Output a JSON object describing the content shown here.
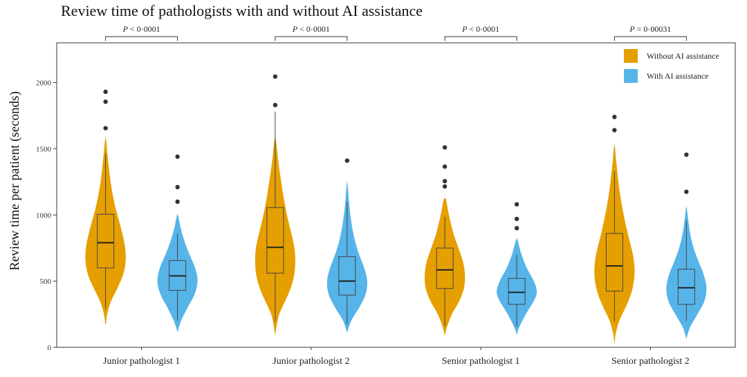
{
  "chart_data": {
    "type": "violin",
    "title": "Review time of pathologists with and without AI assistance",
    "xlabel": "",
    "ylabel": "Review time per patient (seconds)",
    "ylim": [
      0,
      2300
    ],
    "yticks": [
      0,
      500,
      1000,
      1500,
      2000
    ],
    "categories": [
      "Junior pathologist 1",
      "Junior pathologist 2",
      "Senior pathologist 1",
      "Senior pathologist 2"
    ],
    "grid": false,
    "legend_position": "top-right",
    "series": [
      {
        "name": "Without AI assistance",
        "color": "#E69F00",
        "values": [
          {
            "min": 175,
            "q1": 600,
            "median": 790,
            "q3": 1005,
            "max": 1590,
            "whisker_low": 290,
            "whisker_high": 1460,
            "outliers": [
              1930,
              1855,
              1655
            ],
            "density": [
              [
                175,
                0.02
              ],
              [
                250,
                0.08
              ],
              [
                350,
                0.28
              ],
              [
                450,
                0.6
              ],
              [
                550,
                0.88
              ],
              [
                650,
                1.0
              ],
              [
                750,
                0.98
              ],
              [
                850,
                0.85
              ],
              [
                950,
                0.68
              ],
              [
                1050,
                0.5
              ],
              [
                1150,
                0.36
              ],
              [
                1250,
                0.25
              ],
              [
                1350,
                0.17
              ],
              [
                1450,
                0.1
              ],
              [
                1550,
                0.04
              ],
              [
                1590,
                0.0
              ]
            ]
          },
          {
            "min": 85,
            "q1": 560,
            "median": 755,
            "q3": 1055,
            "max": 1595,
            "whisker_low": 195,
            "whisker_high": 1780,
            "outliers": [
              2045,
              1830
            ],
            "density": [
              [
                85,
                0.0
              ],
              [
                150,
                0.06
              ],
              [
                250,
                0.2
              ],
              [
                350,
                0.5
              ],
              [
                450,
                0.78
              ],
              [
                550,
                0.95
              ],
              [
                650,
                1.0
              ],
              [
                750,
                0.96
              ],
              [
                850,
                0.82
              ],
              [
                950,
                0.66
              ],
              [
                1050,
                0.52
              ],
              [
                1150,
                0.4
              ],
              [
                1250,
                0.3
              ],
              [
                1350,
                0.2
              ],
              [
                1450,
                0.12
              ],
              [
                1550,
                0.05
              ],
              [
                1595,
                0.0
              ]
            ]
          },
          {
            "min": 85,
            "q1": 445,
            "median": 585,
            "q3": 750,
            "max": 1120,
            "whisker_low": 160,
            "whisker_high": 985,
            "outliers": [
              1510,
              1365,
              1255,
              1215
            ],
            "density": [
              [
                85,
                0.0
              ],
              [
                150,
                0.1
              ],
              [
                250,
                0.35
              ],
              [
                350,
                0.72
              ],
              [
                450,
                0.96
              ],
              [
                550,
                1.0
              ],
              [
                650,
                0.9
              ],
              [
                750,
                0.68
              ],
              [
                850,
                0.45
              ],
              [
                950,
                0.28
              ],
              [
                1050,
                0.14
              ],
              [
                1120,
                0.05
              ]
            ]
          },
          {
            "min": 15,
            "q1": 425,
            "median": 615,
            "q3": 860,
            "max": 1515,
            "whisker_low": 195,
            "whisker_high": 1330,
            "outliers": [
              1740,
              1640
            ],
            "density": [
              [
                15,
                0.0
              ],
              [
                100,
                0.06
              ],
              [
                200,
                0.24
              ],
              [
                300,
                0.55
              ],
              [
                400,
                0.82
              ],
              [
                500,
                0.97
              ],
              [
                600,
                1.0
              ],
              [
                700,
                0.92
              ],
              [
                800,
                0.76
              ],
              [
                900,
                0.6
              ],
              [
                1000,
                0.46
              ],
              [
                1100,
                0.34
              ],
              [
                1200,
                0.24
              ],
              [
                1300,
                0.16
              ],
              [
                1400,
                0.09
              ],
              [
                1515,
                0.02
              ]
            ]
          }
        ]
      },
      {
        "name": "With AI assistance",
        "color": "#56B4E9",
        "values": [
          {
            "min": 115,
            "q1": 430,
            "median": 540,
            "q3": 655,
            "max": 995,
            "whisker_low": 200,
            "whisker_high": 860,
            "outliers": [
              1440,
              1210,
              1100
            ],
            "density": [
              [
                115,
                0.0
              ],
              [
                200,
                0.18
              ],
              [
                300,
                0.5
              ],
              [
                400,
                0.85
              ],
              [
                500,
                1.0
              ],
              [
                600,
                0.88
              ],
              [
                700,
                0.6
              ],
              [
                800,
                0.35
              ],
              [
                900,
                0.16
              ],
              [
                995,
                0.03
              ]
            ]
          },
          {
            "min": 110,
            "q1": 395,
            "median": 500,
            "q3": 685,
            "max": 1260,
            "whisker_low": 175,
            "whisker_high": 1100,
            "outliers": [
              1410
            ],
            "density": [
              [
                110,
                0.0
              ],
              [
                200,
                0.2
              ],
              [
                300,
                0.6
              ],
              [
                400,
                0.92
              ],
              [
                500,
                1.0
              ],
              [
                600,
                0.85
              ],
              [
                700,
                0.6
              ],
              [
                800,
                0.4
              ],
              [
                900,
                0.26
              ],
              [
                1000,
                0.16
              ],
              [
                1100,
                0.09
              ],
              [
                1200,
                0.04
              ],
              [
                1260,
                0.0
              ]
            ]
          },
          {
            "min": 95,
            "q1": 325,
            "median": 415,
            "q3": 520,
            "max": 810,
            "whisker_low": 155,
            "whisker_high": 700,
            "outliers": [
              1080,
              970,
              900
            ],
            "density": [
              [
                95,
                0.0
              ],
              [
                150,
                0.12
              ],
              [
                250,
                0.45
              ],
              [
                350,
                0.85
              ],
              [
                420,
                1.0
              ],
              [
                500,
                0.85
              ],
              [
                600,
                0.5
              ],
              [
                700,
                0.24
              ],
              [
                810,
                0.04
              ]
            ]
          },
          {
            "min": 65,
            "q1": 325,
            "median": 450,
            "q3": 590,
            "max": 1050,
            "whisker_low": 200,
            "whisker_high": 955,
            "outliers": [
              1455,
              1175
            ],
            "density": [
              [
                65,
                0.0
              ],
              [
                150,
                0.18
              ],
              [
                250,
                0.55
              ],
              [
                350,
                0.9
              ],
              [
                450,
                1.0
              ],
              [
                550,
                0.86
              ],
              [
                650,
                0.6
              ],
              [
                750,
                0.36
              ],
              [
                850,
                0.2
              ],
              [
                950,
                0.1
              ],
              [
                1050,
                0.02
              ]
            ]
          }
        ]
      }
    ],
    "comparisons": [
      "P < 0·0001",
      "P < 0·0001",
      "P < 0·0001",
      "P = 0·00031"
    ]
  }
}
